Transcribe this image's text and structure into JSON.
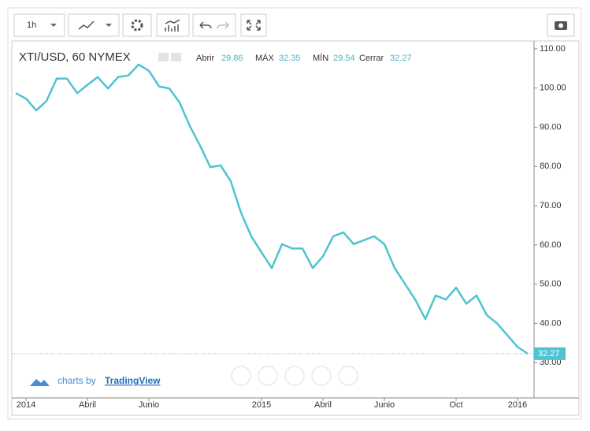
{
  "toolbar": {
    "interval": "1h"
  },
  "ohlc": {
    "open": {
      "label": "Abrir",
      "value": "29.86"
    },
    "high": {
      "label": "MÁX",
      "value": "32.35"
    },
    "low": {
      "label": "MÍN",
      "value": "29.54"
    },
    "close": {
      "label": "Cerrar",
      "value": "32.27"
    }
  },
  "branding": {
    "prefix": "charts by",
    "name": "TradingView"
  },
  "chart_data": {
    "type": "line",
    "title": "XTI/USD, 60 NYMEX",
    "color": "#4fc3cf",
    "grid": false,
    "categories": [
      null,
      "2014",
      null,
      null,
      null,
      null,
      null,
      "Abril",
      null,
      null,
      null,
      null,
      null,
      "Junio",
      null,
      null,
      null,
      null,
      null,
      null,
      null,
      null,
      null,
      null,
      "2015",
      null,
      null,
      null,
      null,
      null,
      "Abril",
      null,
      null,
      null,
      null,
      null,
      "Junio",
      null,
      null,
      null,
      null,
      null,
      null,
      "Oct",
      null,
      null,
      null,
      null,
      null,
      "2016",
      null
    ],
    "values": [
      98.7,
      97.3,
      94.3,
      96.7,
      102.4,
      102.4,
      98.7,
      100.8,
      102.8,
      99.9,
      102.8,
      103.2,
      106,
      104.4,
      100.4,
      99.9,
      96.3,
      90.3,
      85.3,
      79.8,
      80.3,
      76.2,
      68.2,
      62.2,
      58.1,
      54.1,
      60.2,
      59.1,
      59.1,
      54.1,
      57.1,
      62.2,
      63.2,
      60.2,
      61.2,
      62.2,
      60.2,
      54.1,
      50.1,
      46.1,
      41.1,
      47.1,
      46.1,
      49.1,
      45,
      47.1,
      42.1,
      40,
      37,
      34,
      32.27
    ],
    "ylim": [
      22,
      112
    ],
    "yticks": [
      {
        "value": 30,
        "label": "30.00"
      },
      {
        "value": 40,
        "label": "40.00"
      },
      {
        "value": 50,
        "label": "50.00"
      },
      {
        "value": 60,
        "label": "60.00"
      },
      {
        "value": 70,
        "label": "70.00"
      },
      {
        "value": 80,
        "label": "80.00"
      },
      {
        "value": 90,
        "label": "90.00"
      },
      {
        "value": 100,
        "label": "100.00"
      },
      {
        "value": 110,
        "label": "110.00"
      }
    ],
    "last_price": {
      "value": 32.27,
      "label": "32.27"
    }
  }
}
